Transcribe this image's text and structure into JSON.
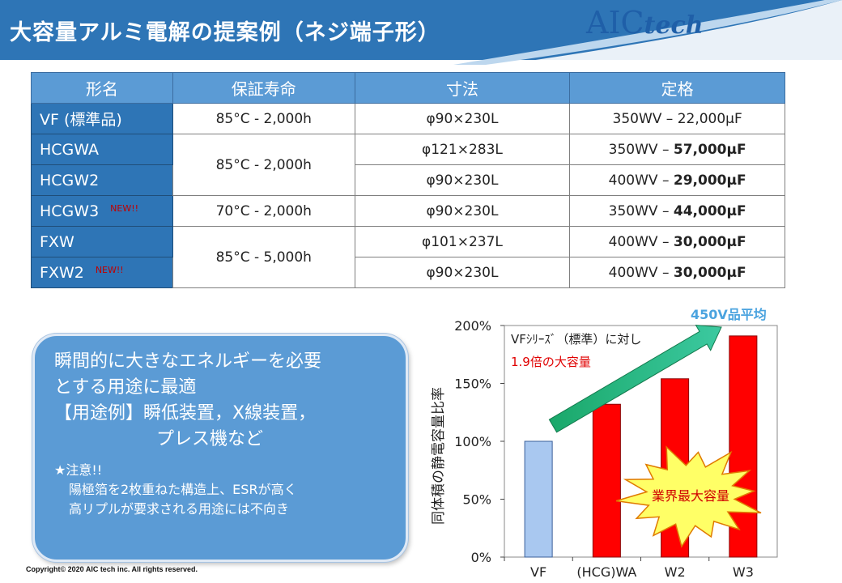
{
  "header": {
    "title": "大容量アルミ電解の提案例（ネジ端子形）",
    "logo_main": "AIC",
    "logo_sub": "tech"
  },
  "table": {
    "columns": [
      "形名",
      "保証寿命",
      "寸法",
      "定格"
    ],
    "rows": [
      {
        "model": "VF (標準品)",
        "life": "85°C - 2,000h",
        "size": "φ90×230L",
        "rating_prefix": "350WV – ",
        "rating_value": "22,000μF",
        "bold": false,
        "new": ""
      },
      {
        "model": "HCGWA",
        "life": "85°C - 2,000h",
        "size": "φ121×283L",
        "rating_prefix": "350WV – ",
        "rating_value": "57,000μF",
        "bold": true,
        "new": ""
      },
      {
        "model": "HCGW2",
        "life": "",
        "size": "φ90×230L",
        "rating_prefix": "400WV – ",
        "rating_value": "29,000μF",
        "bold": true,
        "new": ""
      },
      {
        "model": "HCGW3",
        "life": "70°C - 2,000h",
        "size": "φ90×230L",
        "rating_prefix": "350WV – ",
        "rating_value": "44,000μF",
        "bold": true,
        "new": "NEW!!"
      },
      {
        "model": "FXW",
        "life": "85°C - 5,000h",
        "size": "φ101×237L",
        "rating_prefix": "400WV – ",
        "rating_value": "30,000μF",
        "bold": true,
        "new": ""
      },
      {
        "model": "FXW2",
        "life": "",
        "size": "φ90×230L",
        "rating_prefix": "400WV – ",
        "rating_value": "30,000μF",
        "bold": true,
        "new": "NEW!!"
      }
    ]
  },
  "note": {
    "line1": "瞬間的に大きなエネルギーを必要",
    "line2": "とする用途に最適",
    "line3": "【用途例】瞬低装置，X線装置，",
    "line4": "プレス機など",
    "caution_title": "★注意!!",
    "caution_line1": "陽極箔を2枚重ねた構造上、ESRが高く",
    "caution_line2": "高リプルが要求される用途には不向き"
  },
  "footer": {
    "copyright": "Copyright© 2020 AIC tech inc.  All rights reserved."
  },
  "chart_data": {
    "type": "bar",
    "categories": [
      "VF",
      "(HCG)WA",
      "W2",
      "W3"
    ],
    "values": [
      100,
      132,
      154,
      191
    ],
    "ylabel": "同体積の静電容量比率",
    "ylim": [
      0,
      200
    ],
    "yticks": [
      "0%",
      "50%",
      "100%",
      "150%",
      "200%"
    ],
    "annotation_line1": "VFｼﾘｰｽﾞ（標準）に対し",
    "annotation_line2": "1.9倍の大容量",
    "arrow_label": "450V品平均",
    "burst_label": "業界最大容量",
    "colors": {
      "standard": "#a9c8f0",
      "highlight": "#ff0000",
      "arrow": "#22aa77",
      "burst": "#ffff66"
    }
  }
}
